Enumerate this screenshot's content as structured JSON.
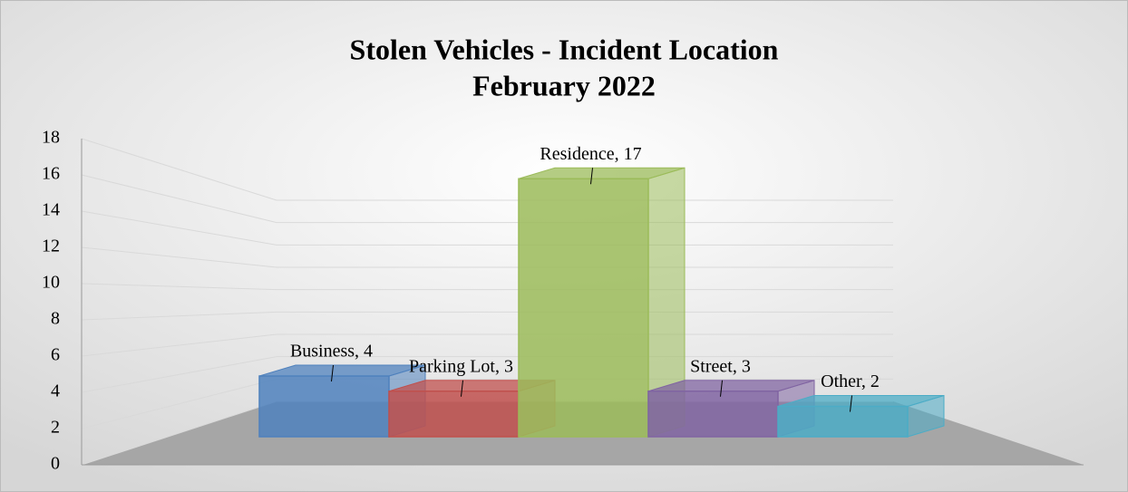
{
  "chart_data": {
    "type": "bar3d",
    "title": "Stolen Vehicles - Incident Location",
    "subtitle": "February 2022",
    "categories": [
      null,
      null,
      null,
      null,
      null
    ],
    "values": [
      4,
      3,
      17,
      3,
      2
    ],
    "value_labels": [
      "Business, 4",
      "Parking Lot, 3",
      "Residence, 17",
      "Street, 3",
      "Other, 2"
    ],
    "colors": [
      "#4f81bd",
      "#c0504d",
      "#9bbb59",
      "#8064a2",
      "#4bacc6"
    ],
    "ylim": [
      0,
      18
    ],
    "yticks": [
      0,
      2,
      4,
      6,
      8,
      10,
      12,
      14,
      16,
      18
    ],
    "grid": true
  }
}
